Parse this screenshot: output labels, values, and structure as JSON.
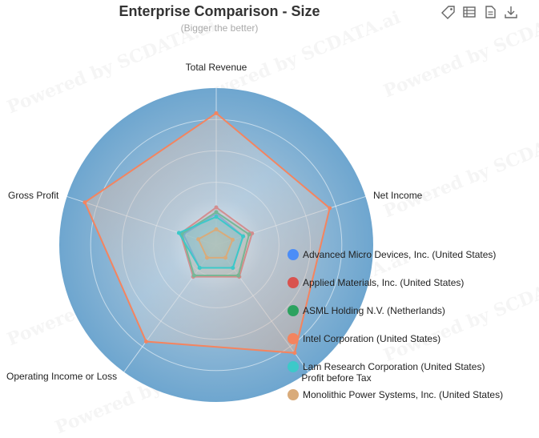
{
  "toolbox": {
    "icons": [
      "tag-icon",
      "data-view-icon",
      "document-icon",
      "download-icon"
    ]
  },
  "watermark": "Powered by SCDATA.ai",
  "chart_data": {
    "type": "radar",
    "title": "Enterprise Comparison - Size",
    "subtitle": "(Bigger the better)",
    "indicators": [
      "Total Revenue",
      "Net Income",
      "Profit before Tax",
      "Operating Income or Loss",
      "Gross Profit"
    ],
    "max": 1.0,
    "legend_position": "bottom-right",
    "series": [
      {
        "name": "Advanced Micro Devices, Inc. (United States)",
        "color": "#4b8df7",
        "values": [
          0.2,
          0.18,
          0.18,
          0.18,
          0.22
        ]
      },
      {
        "name": "Applied Materials, Inc. (United States)",
        "color": "#d9534f",
        "values": [
          0.24,
          0.24,
          0.25,
          0.25,
          0.24
        ]
      },
      {
        "name": "ASML Holding N.V. (Netherlands)",
        "color": "#2ca25f",
        "values": [
          0.21,
          0.22,
          0.24,
          0.24,
          0.23
        ]
      },
      {
        "name": "Intel Corporation (United States)",
        "color": "#f4845f",
        "values": [
          0.84,
          0.76,
          0.85,
          0.76,
          0.88
        ]
      },
      {
        "name": "Lam Research Corporation (United States)",
        "color": "#3cc9c9",
        "values": [
          0.18,
          0.18,
          0.18,
          0.18,
          0.25
        ]
      },
      {
        "name": "Monolithic Power Systems, Inc. (United States)",
        "color": "#d9ab7a",
        "values": [
          0.1,
          0.11,
          0.1,
          0.1,
          0.12
        ]
      }
    ]
  }
}
